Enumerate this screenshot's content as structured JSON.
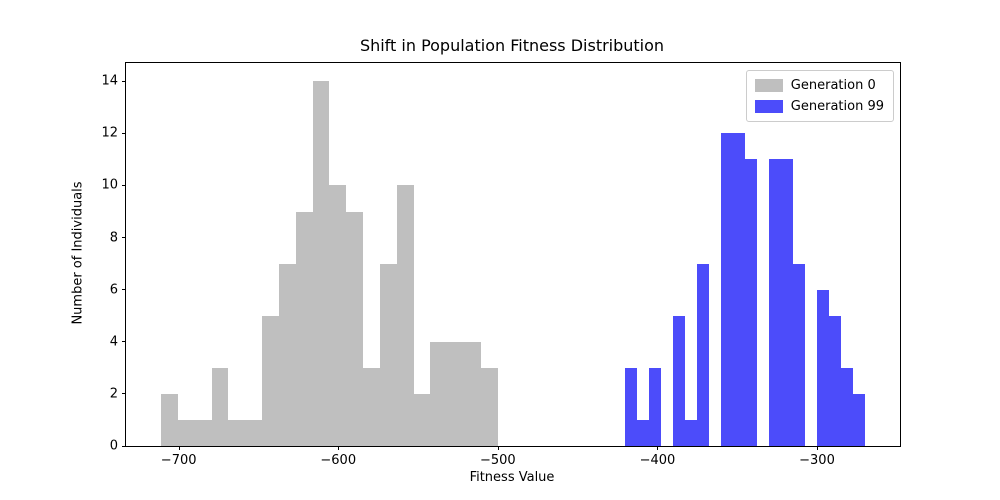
{
  "chart_data": {
    "type": "bar",
    "subtype": "histogram",
    "title": "Shift in Population Fitness Distribution",
    "xlabel": "Fitness Value",
    "ylabel": "Number of Individuals",
    "xlim": [
      -733,
      -248
    ],
    "ylim": [
      0,
      14.7
    ],
    "grid": false,
    "x_ticks": [
      -700,
      -600,
      -500,
      -400,
      -300
    ],
    "x_tick_labels": [
      "−700",
      "−600",
      "−500",
      "−400",
      "−300"
    ],
    "y_ticks": [
      0,
      2,
      4,
      6,
      8,
      10,
      12,
      14
    ],
    "y_tick_labels": [
      "0",
      "2",
      "4",
      "6",
      "8",
      "10",
      "12",
      "14"
    ],
    "legend": {
      "position": "upper right",
      "entries": [
        {
          "label": "Generation 0",
          "color": "#bfbfbf"
        },
        {
          "label": "Generation 99",
          "color": "#4c4cfa"
        }
      ]
    },
    "series": [
      {
        "name": "Generation 0",
        "color": "#bfbfbf",
        "bin_start": -711,
        "bin_width": 10.55,
        "counts": [
          2,
          1,
          1,
          3,
          1,
          1,
          5,
          7,
          9,
          14,
          10,
          9,
          3,
          7,
          10,
          2,
          4,
          4,
          4,
          3
        ]
      },
      {
        "name": "Generation 99",
        "color": "#4c4cfa",
        "bin_start": -420.3,
        "bin_width": 7.53,
        "counts": [
          3,
          1,
          3,
          0,
          5,
          1,
          7,
          0,
          12,
          12,
          11,
          0,
          11,
          11,
          7,
          0,
          6,
          5,
          3,
          2
        ]
      }
    ]
  }
}
